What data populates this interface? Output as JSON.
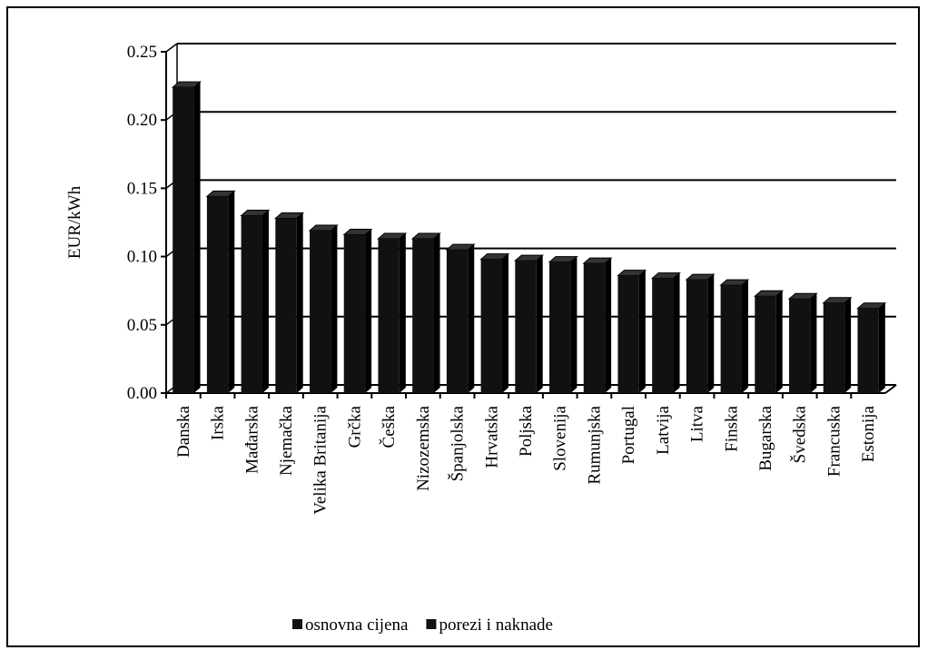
{
  "chart_data": {
    "type": "bar",
    "y_label": "EUR/kWh",
    "categories": [
      "Danska",
      "Irska",
      "Mađarska",
      "Njemačka",
      "Velika Britanija",
      "Grčka",
      "Češka",
      "Nizozemska",
      "Španjolska",
      "Hrvatska",
      "Poljska",
      "Slovenija",
      "Rumunjska",
      "Portugal",
      "Latvija",
      "Litva",
      "Finska",
      "Bugarska",
      "Švedska",
      "Francuska",
      "Estonija"
    ],
    "values": [
      0.224,
      0.144,
      0.13,
      0.128,
      0.119,
      0.116,
      0.113,
      0.113,
      0.105,
      0.098,
      0.097,
      0.096,
      0.095,
      0.086,
      0.084,
      0.083,
      0.079,
      0.071,
      0.069,
      0.066,
      0.062
    ],
    "color": "#111111",
    "legend": [
      {
        "name": "osnovna cijena",
        "color": "#111111"
      },
      {
        "name": "porezi i naknade",
        "color": "#111111"
      }
    ],
    "ylim": [
      0,
      0.25
    ],
    "yticks": [
      {
        "value": 0,
        "label": "0.00"
      },
      {
        "value": 0.05,
        "label": "0.05"
      },
      {
        "value": 0.1,
        "label": "0.10"
      },
      {
        "value": 0.15,
        "label": "0.15"
      },
      {
        "value": 0.2,
        "label": "0.20"
      },
      {
        "value": 0.25,
        "label": "0.25"
      }
    ],
    "grid": true
  }
}
